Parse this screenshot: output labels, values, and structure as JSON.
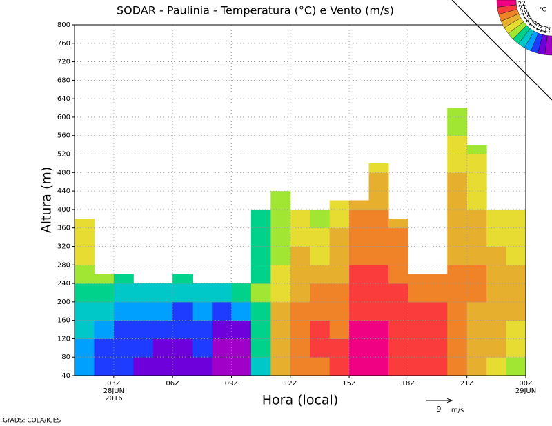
{
  "chart_data": {
    "type": "contour",
    "title": "SODAR - Paulinia - Temperatura (°C) e Vento (m/s)",
    "ylabel": "Altura (m)",
    "xlabel": "Hora (local)",
    "credit": "GrADS: COLA/IGES",
    "vector_reference": {
      "value": 9,
      "label": "9",
      "unit": "m/s"
    },
    "xlim": [
      1,
      24
    ],
    "xticks": [
      {
        "value": 3,
        "label": "03Z"
      },
      {
        "value": 6,
        "label": "06Z"
      },
      {
        "value": 9,
        "label": "09Z"
      },
      {
        "value": 12,
        "label": "12Z"
      },
      {
        "value": 15,
        "label": "15Z"
      },
      {
        "value": 18,
        "label": "18Z"
      },
      {
        "value": 21,
        "label": "21Z"
      },
      {
        "value": 24,
        "label": "00Z"
      }
    ],
    "date_labels": [
      {
        "value": 3,
        "lines": [
          "28JUN",
          "2016"
        ]
      },
      {
        "value": 24,
        "lines": [
          "29JUN"
        ]
      }
    ],
    "ylim": [
      40,
      800
    ],
    "yticks": [
      40,
      80,
      120,
      160,
      200,
      240,
      280,
      320,
      360,
      400,
      440,
      480,
      520,
      560,
      600,
      640,
      680,
      720,
      760,
      800
    ],
    "grid": true,
    "colorbar": {
      "unit": "°C",
      "levels": [
        12,
        13,
        14,
        15,
        16,
        17,
        18,
        19,
        20,
        21,
        22
      ],
      "colors": [
        "#a000c8",
        "#6e00dc",
        "#1e3cff",
        "#00a0ff",
        "#00c8c8",
        "#00d28c",
        "#a0e632",
        "#e6dc32",
        "#e6af2d",
        "#f08228",
        "#fa3c3c",
        "#f00082"
      ]
    },
    "columns": [
      {
        "x": 1,
        "top": 380,
        "values": [
          14.5,
          14.8,
          15.2,
          15.5,
          16.5,
          17.5,
          18.2,
          18.5,
          18.5
        ]
      },
      {
        "x": 2,
        "top": 260,
        "values": [
          13.5,
          13.5,
          14.5,
          15.5,
          16.5,
          17.5
        ]
      },
      {
        "x": 3,
        "top": 260,
        "values": [
          13.5,
          13.5,
          13.8,
          14.5,
          15.5,
          16.5
        ]
      },
      {
        "x": 4,
        "top": 240,
        "values": [
          12.5,
          13.5,
          13.5,
          14.5,
          15.5
        ]
      },
      {
        "x": 5,
        "top": 240,
        "values": [
          12.5,
          12.5,
          13.5,
          14.5,
          15.5
        ]
      },
      {
        "x": 6,
        "top": 260,
        "values": [
          12.5,
          12.5,
          13.5,
          13.5,
          15.5,
          16.5
        ]
      },
      {
        "x": 7,
        "top": 240,
        "values": [
          12.5,
          13.5,
          13.5,
          14.5,
          15.5
        ]
      },
      {
        "x": 8,
        "top": 240,
        "values": [
          11.5,
          11.5,
          12.5,
          13.5,
          15.5
        ]
      },
      {
        "x": 9,
        "top": 240,
        "values": [
          11.5,
          11.5,
          12.5,
          14.5,
          16.5
        ]
      },
      {
        "x": 10,
        "top": 400,
        "values": [
          15.5,
          16.5,
          16.5,
          16.5,
          17.5,
          16.5,
          16.5,
          16.5,
          16.5
        ]
      },
      {
        "x": 11,
        "top": 440,
        "values": [
          19.5,
          19.5,
          19.5,
          19.5,
          18.5,
          18.5,
          17.5,
          17.5,
          17.5,
          17.5
        ]
      },
      {
        "x": 12,
        "top": 400,
        "values": [
          20.5,
          20.5,
          20.5,
          20.5,
          19.5,
          19.5,
          19.5,
          18.5,
          18.5
        ]
      },
      {
        "x": 13,
        "top": 400,
        "values": [
          20.5,
          21.5,
          21.5,
          20.5,
          20.5,
          19.5,
          18.5,
          18.5,
          17.5
        ]
      },
      {
        "x": 14,
        "top": 420,
        "values": [
          21.5,
          21.5,
          20.5,
          20.5,
          20.5,
          19.5,
          19.5,
          19.5,
          18.5,
          18.5
        ]
      },
      {
        "x": 15,
        "top": 420,
        "values": [
          22.5,
          22.5,
          22.5,
          21.5,
          21.5,
          21.5,
          20.5,
          20.5,
          20.5,
          19.5
        ]
      },
      {
        "x": 16,
        "top": 500,
        "values": [
          22.5,
          22.5,
          22.5,
          21.5,
          21.5,
          21.5,
          20.5,
          20.5,
          20.5,
          19.5,
          19.5,
          18.5
        ]
      },
      {
        "x": 17,
        "top": 380,
        "values": [
          21.5,
          21.5,
          21.5,
          21.5,
          21.5,
          20.5,
          20.5,
          20.5,
          19.5
        ]
      },
      {
        "x": 18,
        "top": 260,
        "values": [
          21.5,
          21.5,
          21.5,
          21.5,
          20.5,
          20.5
        ]
      },
      {
        "x": 19,
        "top": 260,
        "values": [
          21.5,
          21.5,
          21.5,
          21.5,
          20.5,
          20.5
        ]
      },
      {
        "x": 20,
        "top": 620,
        "values": [
          20.5,
          20.5,
          20.5,
          20.5,
          20.5,
          20.5,
          19.5,
          19.5,
          19.5,
          19.5,
          19.5,
          18.5,
          18.5,
          17.5,
          17.5
        ]
      },
      {
        "x": 21,
        "top": 540,
        "values": [
          19.5,
          19.5,
          19.5,
          19.5,
          20.5,
          20.5,
          19.5,
          19.5,
          19.5,
          18.5,
          18.5,
          18.5,
          17.5
        ]
      },
      {
        "x": 22,
        "top": 400,
        "values": [
          18.5,
          19.5,
          19.5,
          19.5,
          19.5,
          19.5,
          19.5,
          18.5,
          18.5
        ]
      },
      {
        "x": 23,
        "top": 400,
        "values": [
          17.5,
          18.5,
          18.5,
          19.5,
          19.5,
          19.5,
          18.5,
          18.5,
          18.5
        ]
      }
    ]
  }
}
